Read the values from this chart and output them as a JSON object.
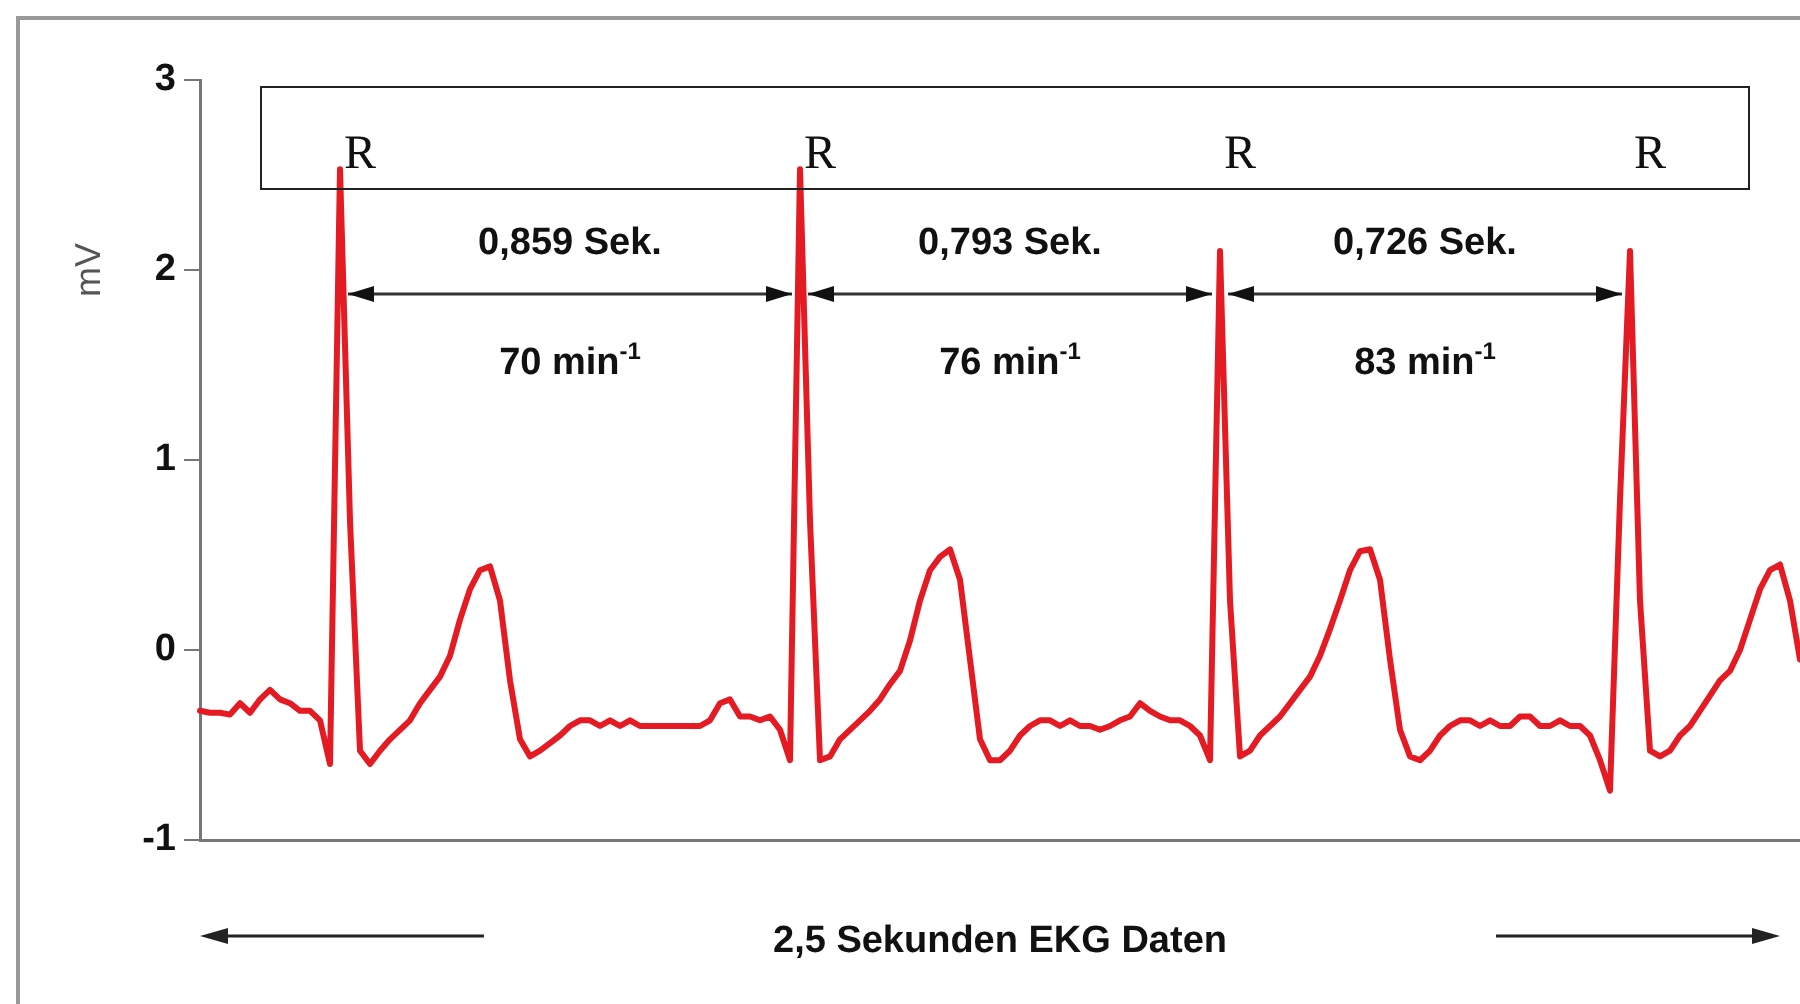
{
  "chart_data": {
    "type": "line",
    "xlabel": "2,5 Sekunden EKG Daten",
    "ylabel": "mV",
    "annotations": [
      "R",
      "R",
      "R",
      "R",
      "0,859 Sek.",
      "0,793 Sek.",
      "0,726 Sek.",
      "70 min$^{-1}$",
      "76 min$^{-1}$",
      "83 min$^{-1}$"
    ],
    "categories": [
      null,
      null,
      null,
      null,
      null,
      null,
      null,
      null,
      null,
      null,
      null,
      null,
      null,
      null,
      null,
      null,
      null,
      null,
      null,
      null,
      null,
      null,
      null,
      null,
      null,
      null,
      null,
      null,
      null,
      null,
      null,
      null,
      null,
      null,
      null,
      null,
      null,
      null,
      null,
      null,
      null,
      null,
      null,
      null,
      null,
      null,
      null,
      null,
      null,
      null,
      null,
      null,
      null,
      null,
      null,
      null,
      null,
      null,
      null,
      null,
      null,
      null,
      null,
      null,
      null,
      null,
      null,
      null,
      null,
      null,
      null,
      null,
      null,
      null,
      null,
      null,
      null,
      null,
      null,
      null,
      null,
      null,
      null,
      null,
      null,
      null,
      null,
      null,
      null,
      null,
      null,
      null,
      null,
      null,
      null,
      null,
      null,
      null,
      null,
      null,
      null,
      null,
      null,
      null,
      null,
      null,
      null,
      null,
      null,
      null,
      null,
      null,
      null,
      null,
      null,
      null,
      null,
      null,
      null,
      null,
      null,
      null,
      null,
      null,
      null,
      null,
      null,
      null,
      null,
      null,
      null,
      null,
      null,
      null,
      null,
      null,
      null,
      null,
      null,
      null,
      null,
      null,
      null,
      null,
      null,
      null,
      null,
      null,
      null,
      null,
      null,
      null,
      null,
      null,
      null,
      null,
      null,
      null,
      null,
      null,
      null
    ],
    "series": [
      {
        "color": "#e41b23",
        "values": [
          -0.32,
          -0.33,
          -0.33,
          -0.34,
          -0.28,
          -0.33,
          -0.26,
          -0.21,
          -0.26,
          -0.28,
          -0.32,
          -0.32,
          -0.37,
          -0.6,
          2.53,
          0.68,
          -0.53,
          -0.6,
          -0.53,
          -0.47,
          -0.42,
          -0.37,
          -0.28,
          -0.21,
          -0.14,
          -0.03,
          0.16,
          0.32,
          0.42,
          0.44,
          0.26,
          -0.16,
          -0.47,
          -0.56,
          -0.53,
          -0.49,
          -0.45,
          -0.4,
          -0.37,
          -0.37,
          -0.4,
          -0.37,
          -0.4,
          -0.37,
          -0.4,
          -0.4,
          -0.4,
          -0.4,
          -0.4,
          -0.4,
          -0.4,
          -0.37,
          -0.28,
          -0.26,
          -0.35,
          -0.35,
          -0.37,
          -0.35,
          -0.42,
          -0.58,
          2.53,
          0.68,
          -0.58,
          -0.56,
          -0.47,
          -0.42,
          -0.37,
          -0.32,
          -0.26,
          -0.18,
          -0.11,
          0.05,
          0.26,
          0.42,
          0.49,
          0.53,
          0.37,
          -0.05,
          -0.47,
          -0.58,
          -0.58,
          -0.53,
          -0.45,
          -0.4,
          -0.37,
          -0.37,
          -0.4,
          -0.37,
          -0.4,
          -0.4,
          -0.42,
          -0.4,
          -0.37,
          -0.35,
          -0.28,
          -0.32,
          -0.35,
          -0.37,
          -0.37,
          -0.4,
          -0.45,
          -0.58,
          2.1,
          0.26,
          -0.56,
          -0.53,
          -0.45,
          -0.4,
          -0.35,
          -0.28,
          -0.21,
          -0.14,
          -0.03,
          0.11,
          0.26,
          0.42,
          0.52,
          0.53,
          0.37,
          -0.05,
          -0.42,
          -0.56,
          -0.58,
          -0.53,
          -0.45,
          -0.4,
          -0.37,
          -0.37,
          -0.4,
          -0.37,
          -0.4,
          -0.4,
          -0.35,
          -0.35,
          -0.4,
          -0.4,
          -0.37,
          -0.4,
          -0.4,
          -0.45,
          -0.58,
          -0.74,
          0.79,
          2.1,
          0.26,
          -0.53,
          -0.56,
          -0.53,
          -0.45,
          -0.4,
          -0.32,
          -0.24,
          -0.16,
          -0.11,
          0,
          0.16,
          0.32,
          0.42,
          0.45,
          0.26,
          -0.05
        ]
      }
    ],
    "ylim": [
      -1,
      3
    ],
    "yticks": [
      -1,
      0,
      1,
      2,
      3
    ],
    "tick_labels": "y"
  }
}
